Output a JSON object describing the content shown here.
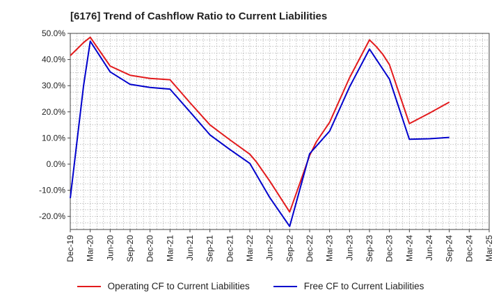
{
  "chart_data": {
    "type": "line",
    "title": "[6176]  Trend of Cashflow Ratio to Current Liabilities",
    "xlabel": "",
    "ylabel": "",
    "categories": [
      "Dec-19",
      "Mar-20",
      "Jun-20",
      "Sep-20",
      "Dec-20",
      "Mar-21",
      "Jun-21",
      "Sep-21",
      "Dec-21",
      "Mar-22",
      "Jun-22",
      "Sep-22",
      "Dec-22",
      "Mar-23",
      "Jun-23",
      "Sep-23",
      "Dec-23",
      "Mar-24",
      "Jun-24",
      "Sep-24",
      "Dec-24",
      "Mar-25"
    ],
    "ylim": [
      -25,
      50
    ],
    "y_ticks": [
      50,
      40,
      30,
      20,
      10,
      0,
      -10,
      -20
    ],
    "y_tick_labels": [
      "50.0%",
      "40.0%",
      "30.0%",
      "20.0%",
      "10.0%",
      "0.0%",
      "-10.0%",
      "-20.0%"
    ],
    "grid": true,
    "legend_position": "bottom-center",
    "series": [
      {
        "name": "Operating CF to Current Liabilities",
        "color": "#e31a1c",
        "x": [
          "Dec-19",
          "Jan-20",
          "Feb-20",
          "Mar-20",
          "Jun-20",
          "Sep-20",
          "Dec-20",
          "Mar-21",
          "Jun-21",
          "Sep-21",
          "Dec-21",
          "Mar-22",
          "Apr-22",
          "Jun-22",
          "Sep-22",
          "Dec-22",
          "Jan-23",
          "Mar-23",
          "Jun-23",
          "Sep-23",
          "Oct-23",
          "Nov-23",
          "Dec-23",
          "Mar-24",
          "Jun-24",
          "Sep-24"
        ],
        "values": [
          41.5,
          44.0,
          46.5,
          48.5,
          37.5,
          34.0,
          32.8,
          32.3,
          23.5,
          15.0,
          9.3,
          3.8,
          0.8,
          -6.5,
          -18.3,
          3.3,
          8.5,
          16.0,
          33.0,
          47.5,
          45.0,
          42.0,
          38.0,
          15.5,
          19.5,
          23.7
        ]
      },
      {
        "name": "Free CF to Current Liabilities",
        "color": "#0000cc",
        "x": [
          "Dec-19",
          "Feb-20",
          "Mar-20",
          "Jun-20",
          "Sep-20",
          "Dec-20",
          "Mar-21",
          "Jun-21",
          "Sep-21",
          "Dec-21",
          "Mar-22",
          "Jun-22",
          "Sep-22",
          "Dec-22",
          "Mar-23",
          "Jun-23",
          "Sep-23",
          "Dec-23",
          "Mar-24",
          "Jun-24",
          "Sep-24"
        ],
        "values": [
          -13.0,
          30.0,
          47.0,
          35.3,
          30.5,
          29.3,
          28.7,
          20.0,
          11.2,
          5.6,
          0.3,
          -12.8,
          -23.8,
          4.0,
          12.6,
          29.5,
          44.0,
          32.5,
          9.5,
          9.7,
          10.2
        ]
      }
    ]
  }
}
